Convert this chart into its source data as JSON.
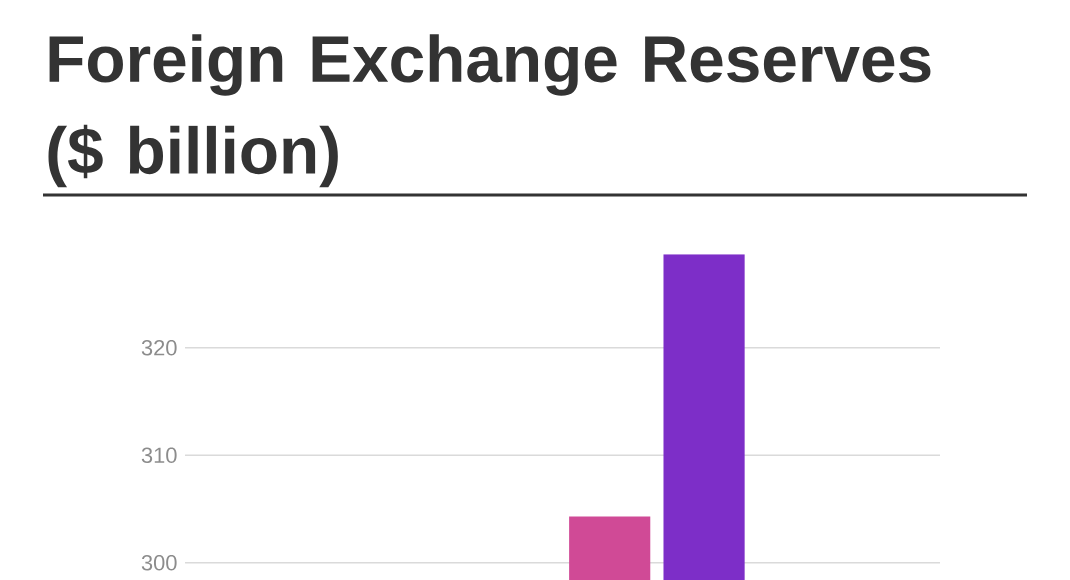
{
  "chart_data": {
    "type": "bar",
    "title": "Foreign Exchange Reserves ($ billion)",
    "categories": [
      null,
      null,
      null,
      null,
      null,
      null,
      null,
      null
    ],
    "values": [
      null,
      null,
      null,
      null,
      304.3,
      328.7,
      null,
      null
    ],
    "colors": [
      "#d04a96",
      "#d04a96",
      "#d04a96",
      "#d04a96",
      "#d04a96",
      "#7d2ec8",
      "#7d2ec8",
      "#7d2ec8"
    ],
    "ylim": [
      298.4,
      328.7
    ],
    "yticks": [
      300,
      310,
      320
    ],
    "grid": "y",
    "tick_labels": "y"
  }
}
